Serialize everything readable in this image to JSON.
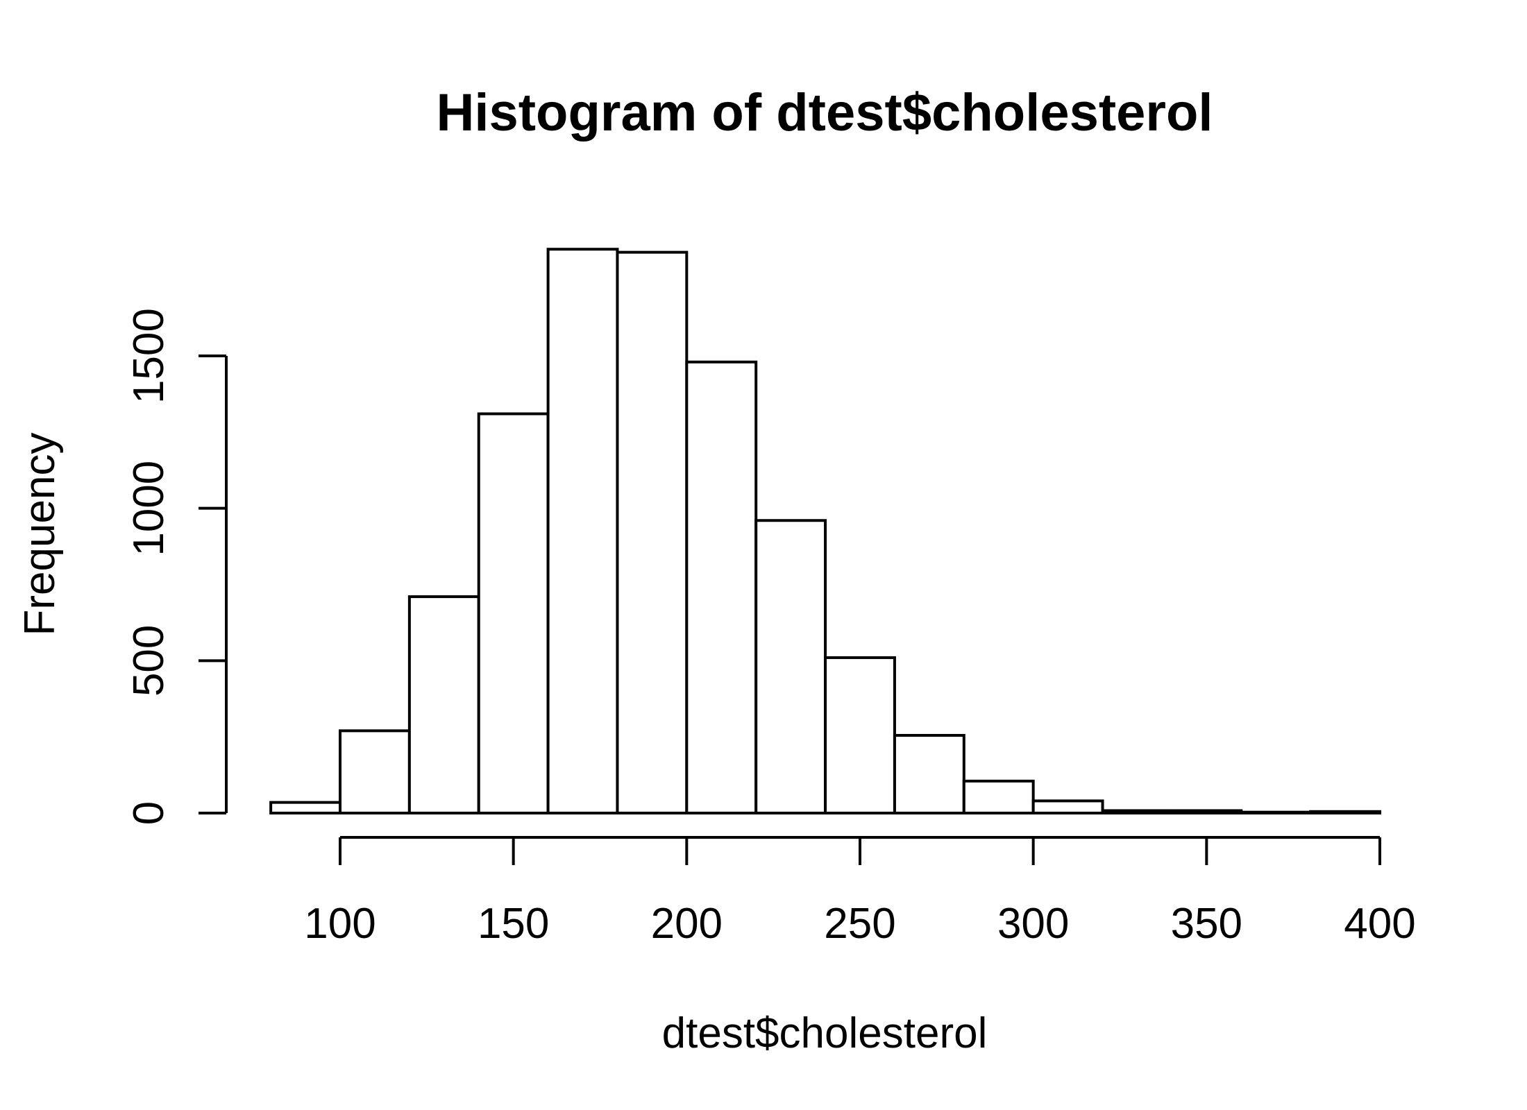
{
  "chart_data": {
    "type": "bar",
    "title": "Histogram of dtest$cholesterol",
    "xlabel": "dtest$cholesterol",
    "ylabel": "Frequency",
    "bin_edges": [
      80,
      100,
      120,
      140,
      160,
      180,
      200,
      220,
      240,
      260,
      280,
      300,
      320,
      340,
      360,
      380,
      400
    ],
    "values": [
      35,
      270,
      710,
      1310,
      1850,
      1840,
      1480,
      960,
      510,
      255,
      105,
      40,
      8,
      8,
      3,
      5
    ],
    "x_ticks": [
      100,
      150,
      200,
      250,
      300,
      350,
      400
    ],
    "y_ticks": [
      0,
      500,
      1000,
      1500
    ],
    "xlim": [
      80,
      400
    ],
    "ylim": [
      0,
      1850
    ],
    "grid": false
  }
}
